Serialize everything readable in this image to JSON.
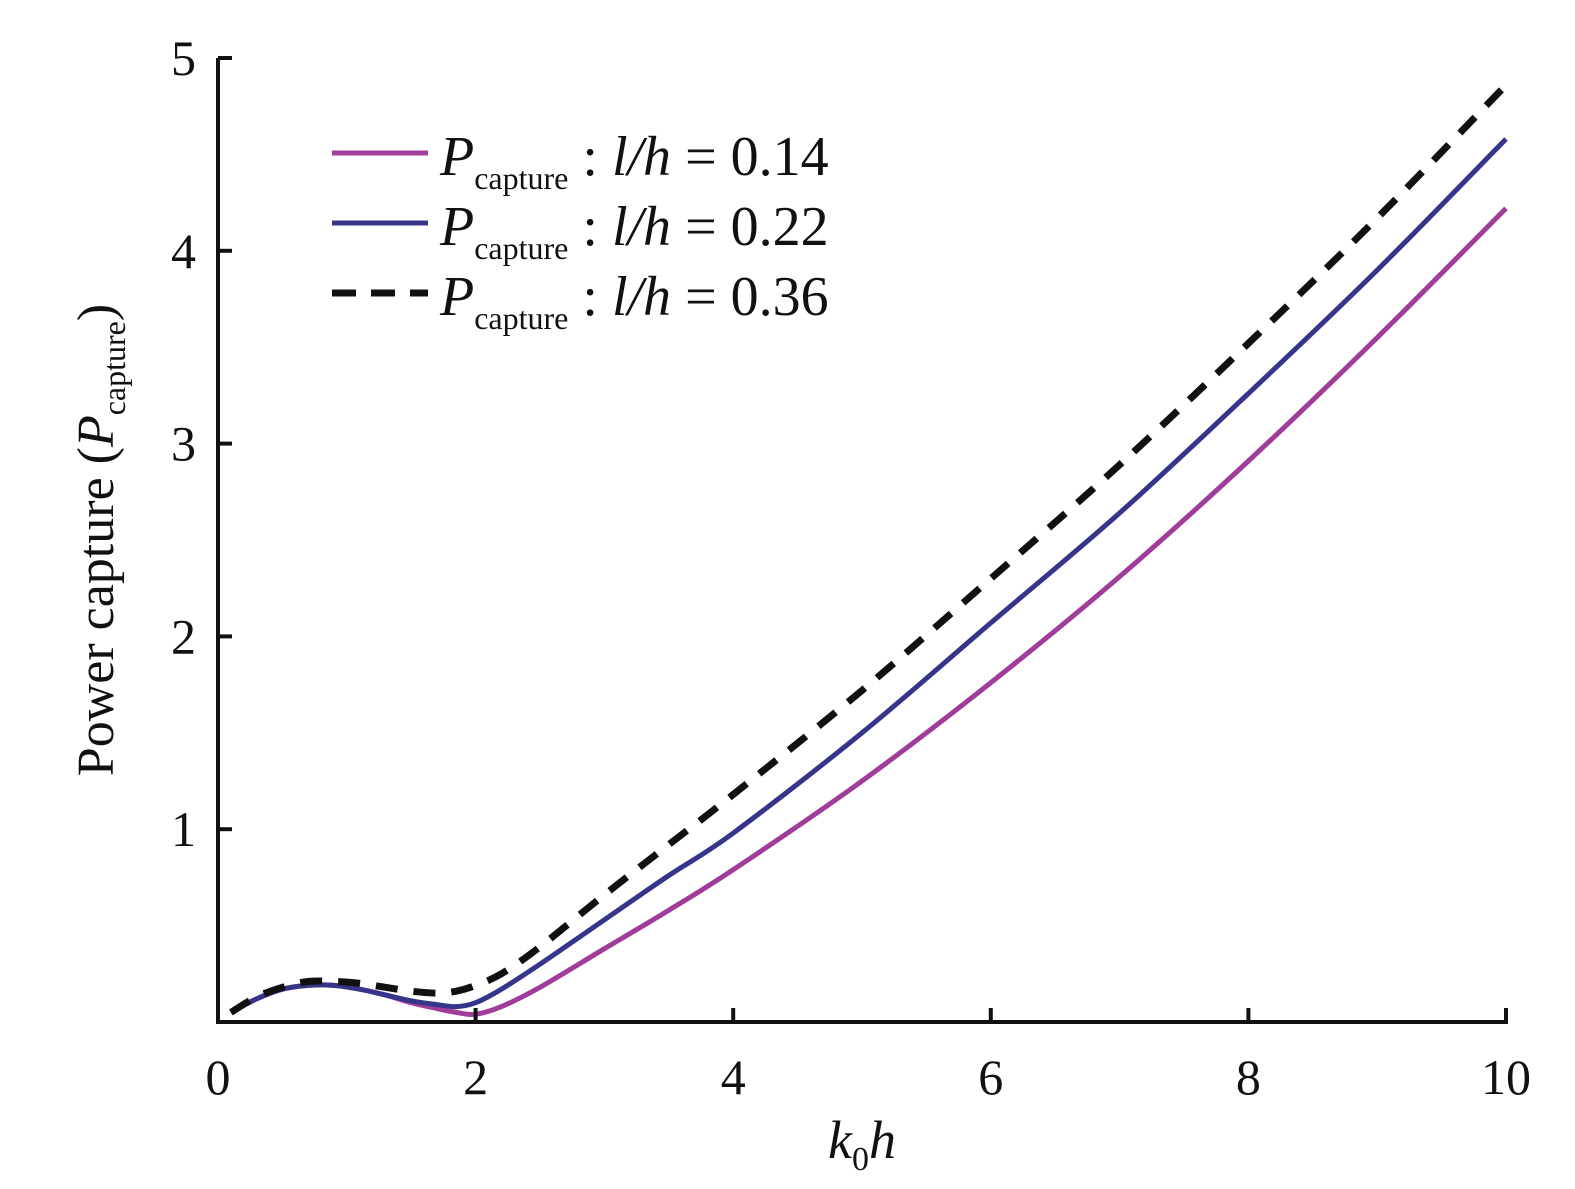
{
  "chart_data": {
    "type": "line",
    "xlabel": {
      "main": "k",
      "sub": "0",
      "tail": "h"
    },
    "ylabel": {
      "main": "Power capture (",
      "sym": "P",
      "sub": "capture",
      "tail": ")"
    },
    "xlim": [
      0,
      10
    ],
    "ylim": [
      0,
      5
    ],
    "xticks": [
      0,
      2,
      4,
      6,
      8,
      10
    ],
    "yticks": [
      1,
      2,
      3,
      4,
      5
    ],
    "grid": false,
    "legend_position": "top-left",
    "series": [
      {
        "name": "P_capture : l/h = 0.14",
        "legend": {
          "sym": "P",
          "sub": "capture",
          "rest": " : ",
          "ratio": "l/h",
          "eq": " = ",
          "value": "0.14"
        },
        "color": "#a03c9a",
        "dash": "solid",
        "x": [
          0.1,
          0.3,
          0.5,
          0.7,
          0.9,
          1.1,
          1.3,
          1.5,
          1.7,
          1.85,
          2.0,
          2.2,
          2.5,
          3.0,
          3.5,
          4.0,
          5.0,
          6.0,
          7.0,
          8.0,
          9.0,
          10.0
        ],
        "y": [
          0.05,
          0.12,
          0.17,
          0.19,
          0.19,
          0.17,
          0.14,
          0.1,
          0.07,
          0.05,
          0.04,
          0.08,
          0.18,
          0.38,
          0.58,
          0.79,
          1.25,
          1.76,
          2.31,
          2.91,
          3.55,
          4.22
        ]
      },
      {
        "name": "P_capture : l/h = 0.22",
        "legend": {
          "sym": "P",
          "sub": "capture",
          "rest": " : ",
          "ratio": "l/h",
          "eq": " = ",
          "value": "0.22"
        },
        "color": "#35358a",
        "dash": "solid",
        "x": [
          0.1,
          0.3,
          0.5,
          0.7,
          0.9,
          1.1,
          1.3,
          1.5,
          1.7,
          1.85,
          2.0,
          2.2,
          2.5,
          3.0,
          3.5,
          4.0,
          5.0,
          6.0,
          7.0,
          8.0,
          9.0,
          10.0
        ],
        "y": [
          0.05,
          0.12,
          0.17,
          0.19,
          0.19,
          0.17,
          0.14,
          0.11,
          0.09,
          0.08,
          0.1,
          0.17,
          0.3,
          0.53,
          0.76,
          0.98,
          1.5,
          2.07,
          2.64,
          3.26,
          3.9,
          4.58
        ]
      },
      {
        "name": "P_capture : l/h = 0.36",
        "legend": {
          "sym": "P",
          "sub": "capture",
          "rest": " : ",
          "ratio": "l/h",
          "eq": " = ",
          "value": "0.36"
        },
        "color": "#111111",
        "dash": "dashed",
        "x": [
          0.1,
          0.3,
          0.5,
          0.7,
          0.9,
          1.1,
          1.3,
          1.5,
          1.7,
          1.85,
          2.0,
          2.2,
          2.5,
          3.0,
          3.5,
          4.0,
          5.0,
          6.0,
          7.0,
          8.0,
          9.0,
          10.0
        ],
        "y": [
          0.05,
          0.13,
          0.18,
          0.21,
          0.21,
          0.2,
          0.18,
          0.16,
          0.15,
          0.16,
          0.19,
          0.25,
          0.39,
          0.66,
          0.92,
          1.18,
          1.72,
          2.3,
          2.89,
          3.52,
          4.17,
          4.86
        ]
      }
    ]
  }
}
